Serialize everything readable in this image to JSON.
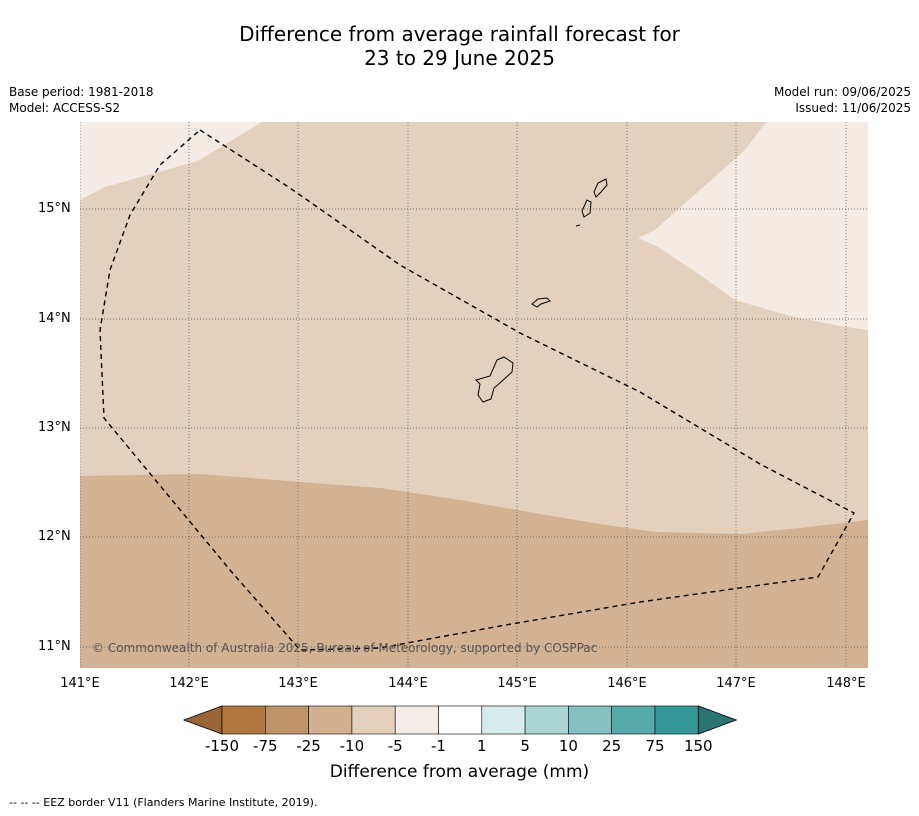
{
  "title": {
    "line1": "Difference from average rainfall forecast for",
    "line2": "23 to 29 June 2025"
  },
  "meta_left": {
    "base_period": "Base period: 1981-2018",
    "model": "Model: ACCESS-S2"
  },
  "meta_right": {
    "model_run": "Model run: 09/06/2025",
    "issued": "Issued: 11/06/2025"
  },
  "map": {
    "lon_labels": [
      "141°E",
      "142°E",
      "143°E",
      "144°E",
      "145°E",
      "146°E",
      "147°E",
      "148°E"
    ],
    "lat_labels": [
      "15°N",
      "14°N",
      "13°N",
      "12°N",
      "11°N"
    ],
    "copyright": "© Commonwealth of Australia 2025, Bureau of Meteorology, supported by COSPPac",
    "fill_colors": {
      "light": "#f3ebe4",
      "mid": "#e3d0bd",
      "dark": "#d3b193"
    }
  },
  "colorbar": {
    "tick_labels": [
      "-150",
      "-75",
      "-25",
      "-10",
      "-5",
      "-1",
      "1",
      "5",
      "10",
      "25",
      "75",
      "150"
    ],
    "colors": [
      "#9a6537",
      "#b07840",
      "#c09469",
      "#d2b090",
      "#e4d0bd",
      "#f4ece6",
      "#ffffff",
      "#d6ebeb",
      "#acd6d3",
      "#84c0c0",
      "#56aaaa",
      "#339797",
      "#2a7474"
    ],
    "title": "Difference from average (mm)"
  },
  "footnote": "--  --  -- EEZ border V11 (Flanders Marine Institute, 2019)."
}
